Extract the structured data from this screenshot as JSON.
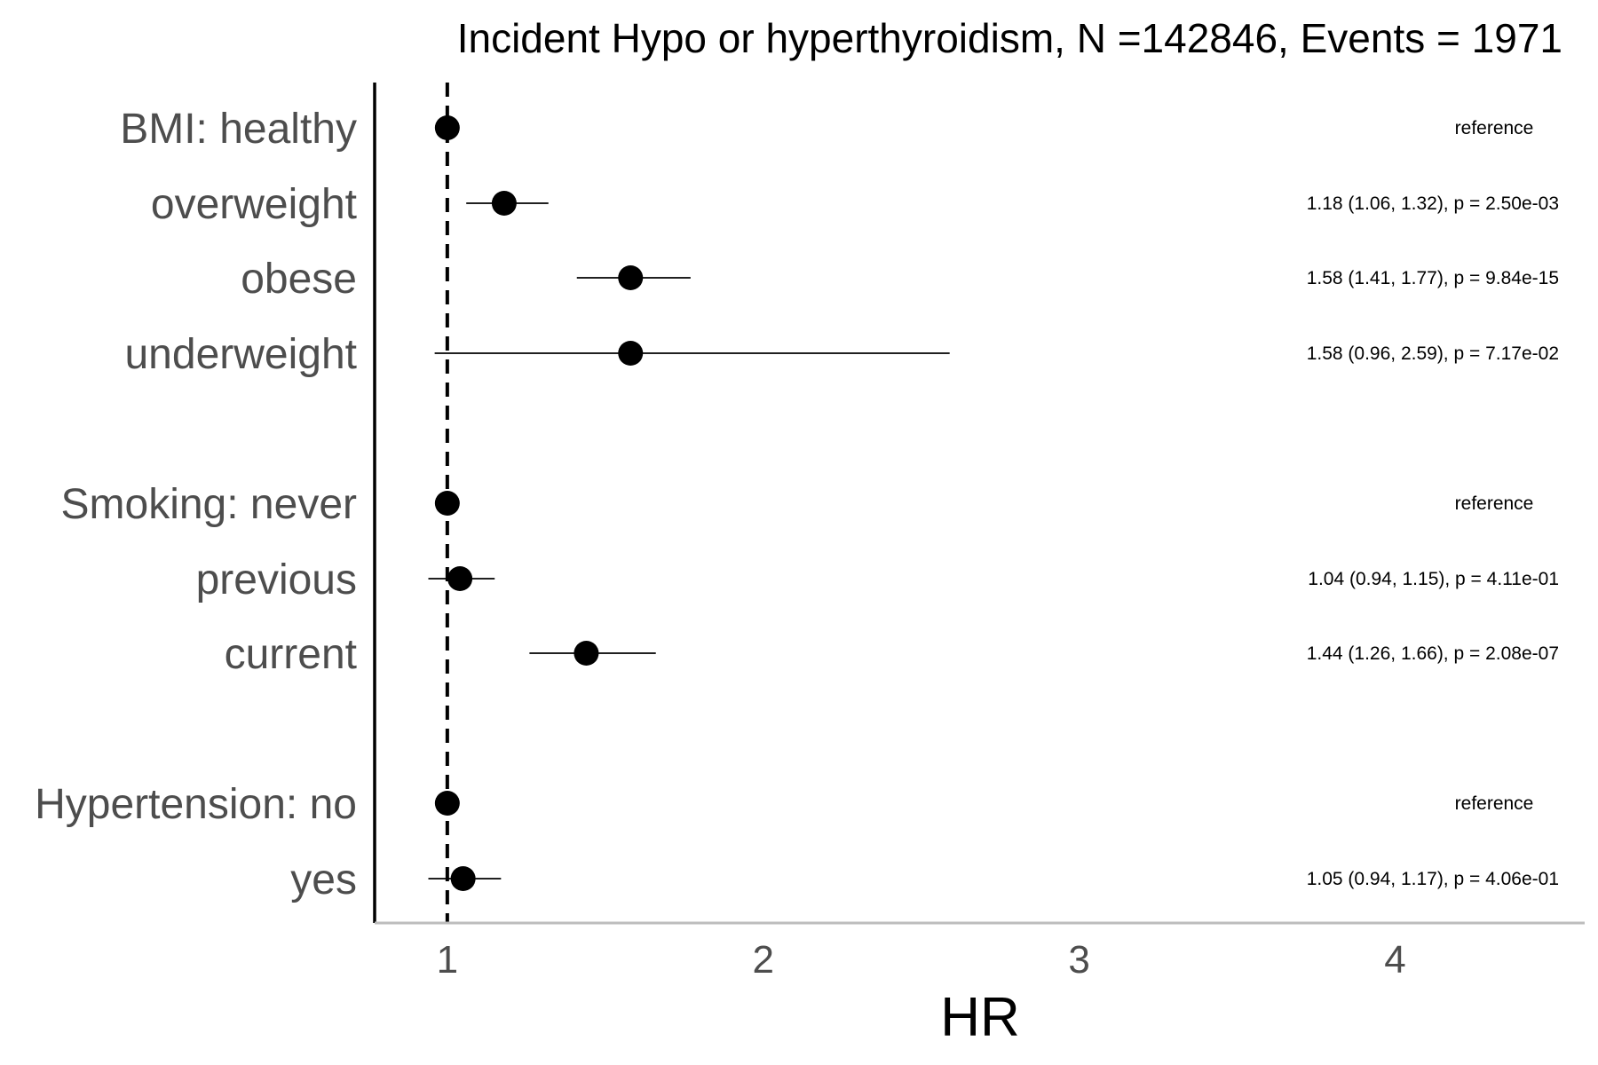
{
  "chart_data": {
    "type": "scatter",
    "subtype": "forest-plot",
    "title": "Incident Hypo or hyperthyroidism, N =142846, Events = 1971",
    "xlabel": "HR",
    "ylabel": "",
    "xlim": [
      0.77,
      4.6
    ],
    "xticks": [
      "1",
      "2",
      "3",
      "4"
    ],
    "reference_line": 1,
    "grid": false,
    "point_color": "#000000",
    "rows": [
      {
        "label": "BMI: healthy",
        "hr": 1.0,
        "ci": [
          1.0,
          1.0
        ],
        "annotation": "reference"
      },
      {
        "label": "overweight",
        "hr": 1.18,
        "ci": [
          1.06,
          1.32
        ],
        "annotation": "1.18 (1.06, 1.32), p = 2.50e-03"
      },
      {
        "label": "obese",
        "hr": 1.58,
        "ci": [
          1.41,
          1.77
        ],
        "annotation": "1.58 (1.41, 1.77), p = 9.84e-15"
      },
      {
        "label": "underweight",
        "hr": 1.58,
        "ci": [
          0.96,
          2.59
        ],
        "annotation": "1.58 (0.96, 2.59), p = 7.17e-02"
      },
      {
        "label": "Smoking: never",
        "hr": 1.0,
        "ci": [
          1.0,
          1.0
        ],
        "annotation": "reference"
      },
      {
        "label": "previous",
        "hr": 1.04,
        "ci": [
          0.94,
          1.15
        ],
        "annotation": "1.04 (0.94, 1.15), p = 4.11e-01"
      },
      {
        "label": "current",
        "hr": 1.44,
        "ci": [
          1.26,
          1.66
        ],
        "annotation": "1.44 (1.26, 1.66), p = 2.08e-07"
      },
      {
        "label": "Hypertension: no",
        "hr": 1.0,
        "ci": [
          1.0,
          1.0
        ],
        "annotation": "reference"
      },
      {
        "label": "yes",
        "hr": 1.05,
        "ci": [
          0.94,
          1.17
        ],
        "annotation": "1.05 (0.94, 1.17), p = 4.06e-01"
      }
    ]
  }
}
